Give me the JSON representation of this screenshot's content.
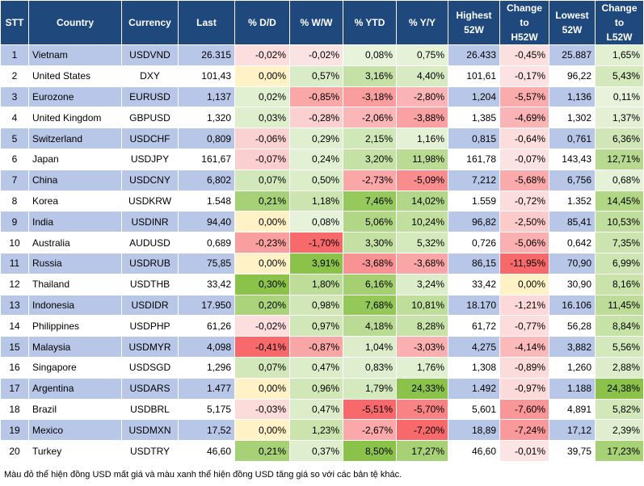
{
  "headers": [
    "STT",
    "Country",
    "Currency",
    "Last",
    "% D/D",
    "% W/W",
    "% YTD",
    "% Y/Y",
    "Highest 52W",
    "Change to H52W",
    "Lowest 52W",
    "Change to L52W"
  ],
  "header_lines": [
    [
      "STT"
    ],
    [
      "Country"
    ],
    [
      "Currency"
    ],
    [
      "Last"
    ],
    [
      "% D/D"
    ],
    [
      "% W/W"
    ],
    [
      "% YTD"
    ],
    [
      "% Y/Y"
    ],
    [
      "Highest",
      "52W"
    ],
    [
      "Change",
      "to",
      "H52W"
    ],
    [
      "Lowest",
      "52W"
    ],
    [
      "Change",
      "to",
      "L52W"
    ]
  ],
  "rows": [
    [
      "1",
      "Vietnam",
      "USDVND",
      "26.315",
      "-0,02%",
      "-0,02%",
      "0,08%",
      "0,75%",
      "26.433",
      "-0,45%",
      "25.887",
      "1,65%"
    ],
    [
      "2",
      "United States",
      "DXY",
      "101,43",
      "0,00%",
      "0,57%",
      "3,16%",
      "4,40%",
      "101,61",
      "-0,17%",
      "96,22",
      "5,43%"
    ],
    [
      "3",
      "Eurozone",
      "EURUSD",
      "1,137",
      "0,02%",
      "-0,85%",
      "-3,18%",
      "-2,80%",
      "1,204",
      "-5,57%",
      "1,136",
      "0,11%"
    ],
    [
      "4",
      "United Kingdom",
      "GBPUSD",
      "1,320",
      "0,03%",
      "-0,28%",
      "-2,06%",
      "-3,88%",
      "1,385",
      "-4,69%",
      "1,302",
      "1,37%"
    ],
    [
      "5",
      "Switzerland",
      "USDCHF",
      "0,809",
      "-0,06%",
      "0,29%",
      "2,15%",
      "1,16%",
      "0,815",
      "-0,64%",
      "0,761",
      "6,36%"
    ],
    [
      "6",
      "Japan",
      "USDJPY",
      "161,67",
      "-0,07%",
      "0,24%",
      "3,20%",
      "11,98%",
      "161,78",
      "-0,07%",
      "143,43",
      "12,71%"
    ],
    [
      "7",
      "China",
      "USDCNY",
      "6,802",
      "0,07%",
      "0,50%",
      "-2,73%",
      "-5,09%",
      "7,212",
      "-5,68%",
      "6,756",
      "0,68%"
    ],
    [
      "8",
      "Korea",
      "USDKRW",
      "1.548",
      "0,21%",
      "1,18%",
      "7,46%",
      "14,02%",
      "1.559",
      "-0,72%",
      "1.352",
      "14,45%"
    ],
    [
      "9",
      "India",
      "USDINR",
      "94,40",
      "0,00%",
      "0,08%",
      "5,06%",
      "10,24%",
      "96,82",
      "-2,50%",
      "85,41",
      "10,53%"
    ],
    [
      "10",
      "Australia",
      "AUDUSD",
      "0,689",
      "-0,23%",
      "-1,70%",
      "3,30%",
      "5,32%",
      "0,726",
      "-5,06%",
      "0,642",
      "7,35%"
    ],
    [
      "11",
      "Russia",
      "USDRUB",
      "75,85",
      "0,00%",
      "3,91%",
      "-3,68%",
      "-3,68%",
      "86,15",
      "-11,95%",
      "70,90",
      "6,99%"
    ],
    [
      "12",
      "Thailand",
      "USDTHB",
      "33,42",
      "0,30%",
      "1,80%",
      "6,16%",
      "3,24%",
      "33,42",
      "0,00%",
      "30,90",
      "8,16%"
    ],
    [
      "13",
      "Indonesia",
      "USDIDR",
      "17.950",
      "0,20%",
      "0,98%",
      "7,68%",
      "10,81%",
      "18.170",
      "-1,21%",
      "16.106",
      "11,45%"
    ],
    [
      "14",
      "Philippines",
      "USDPHP",
      "61,26",
      "-0,02%",
      "0,97%",
      "4,18%",
      "8,28%",
      "61,72",
      "-0,77%",
      "56,28",
      "8,84%"
    ],
    [
      "15",
      "Malaysia",
      "USDMYR",
      "4,098",
      "-0,41%",
      "-0,87%",
      "1,04%",
      "-3,03%",
      "4,275",
      "-4,14%",
      "3,882",
      "5,56%"
    ],
    [
      "16",
      "Singapore",
      "USDSGD",
      "1,296",
      "0,07%",
      "0,47%",
      "0,83%",
      "1,76%",
      "1,308",
      "-0,89%",
      "1,260",
      "2,88%"
    ],
    [
      "17",
      "Argentina",
      "USDARS",
      "1.477",
      "0,00%",
      "0,96%",
      "1,79%",
      "24,33%",
      "1.492",
      "-0,97%",
      "1.188",
      "24,38%"
    ],
    [
      "18",
      "Brazil",
      "USDBRL",
      "5,175",
      "-0,03%",
      "0,47%",
      "-5,51%",
      "-5,70%",
      "5,601",
      "-7,60%",
      "4,891",
      "5,82%"
    ],
    [
      "19",
      "Mexico",
      "USDMXN",
      "17,52",
      "0,00%",
      "1,23%",
      "-2,67%",
      "-7,20%",
      "18,89",
      "-7,24%",
      "17,12",
      "2,39%"
    ],
    [
      "20",
      "Turkey",
      "USDTRY",
      "46,60",
      "0,21%",
      "0,37%",
      "8,50%",
      "17,27%",
      "46,60",
      "-0,01%",
      "39,75",
      "17,23%"
    ]
  ],
  "caption": "Màu đỏ thể hiện đồng USD mất giá và màu xanh thể hiện đồng USD tăng giá so với các bản tệ khác.",
  "colors": {
    "header_bg": "#1f497d",
    "row_odd_bg": "#b8c7e8",
    "row_even_bg": "#ffffff"
  }
}
